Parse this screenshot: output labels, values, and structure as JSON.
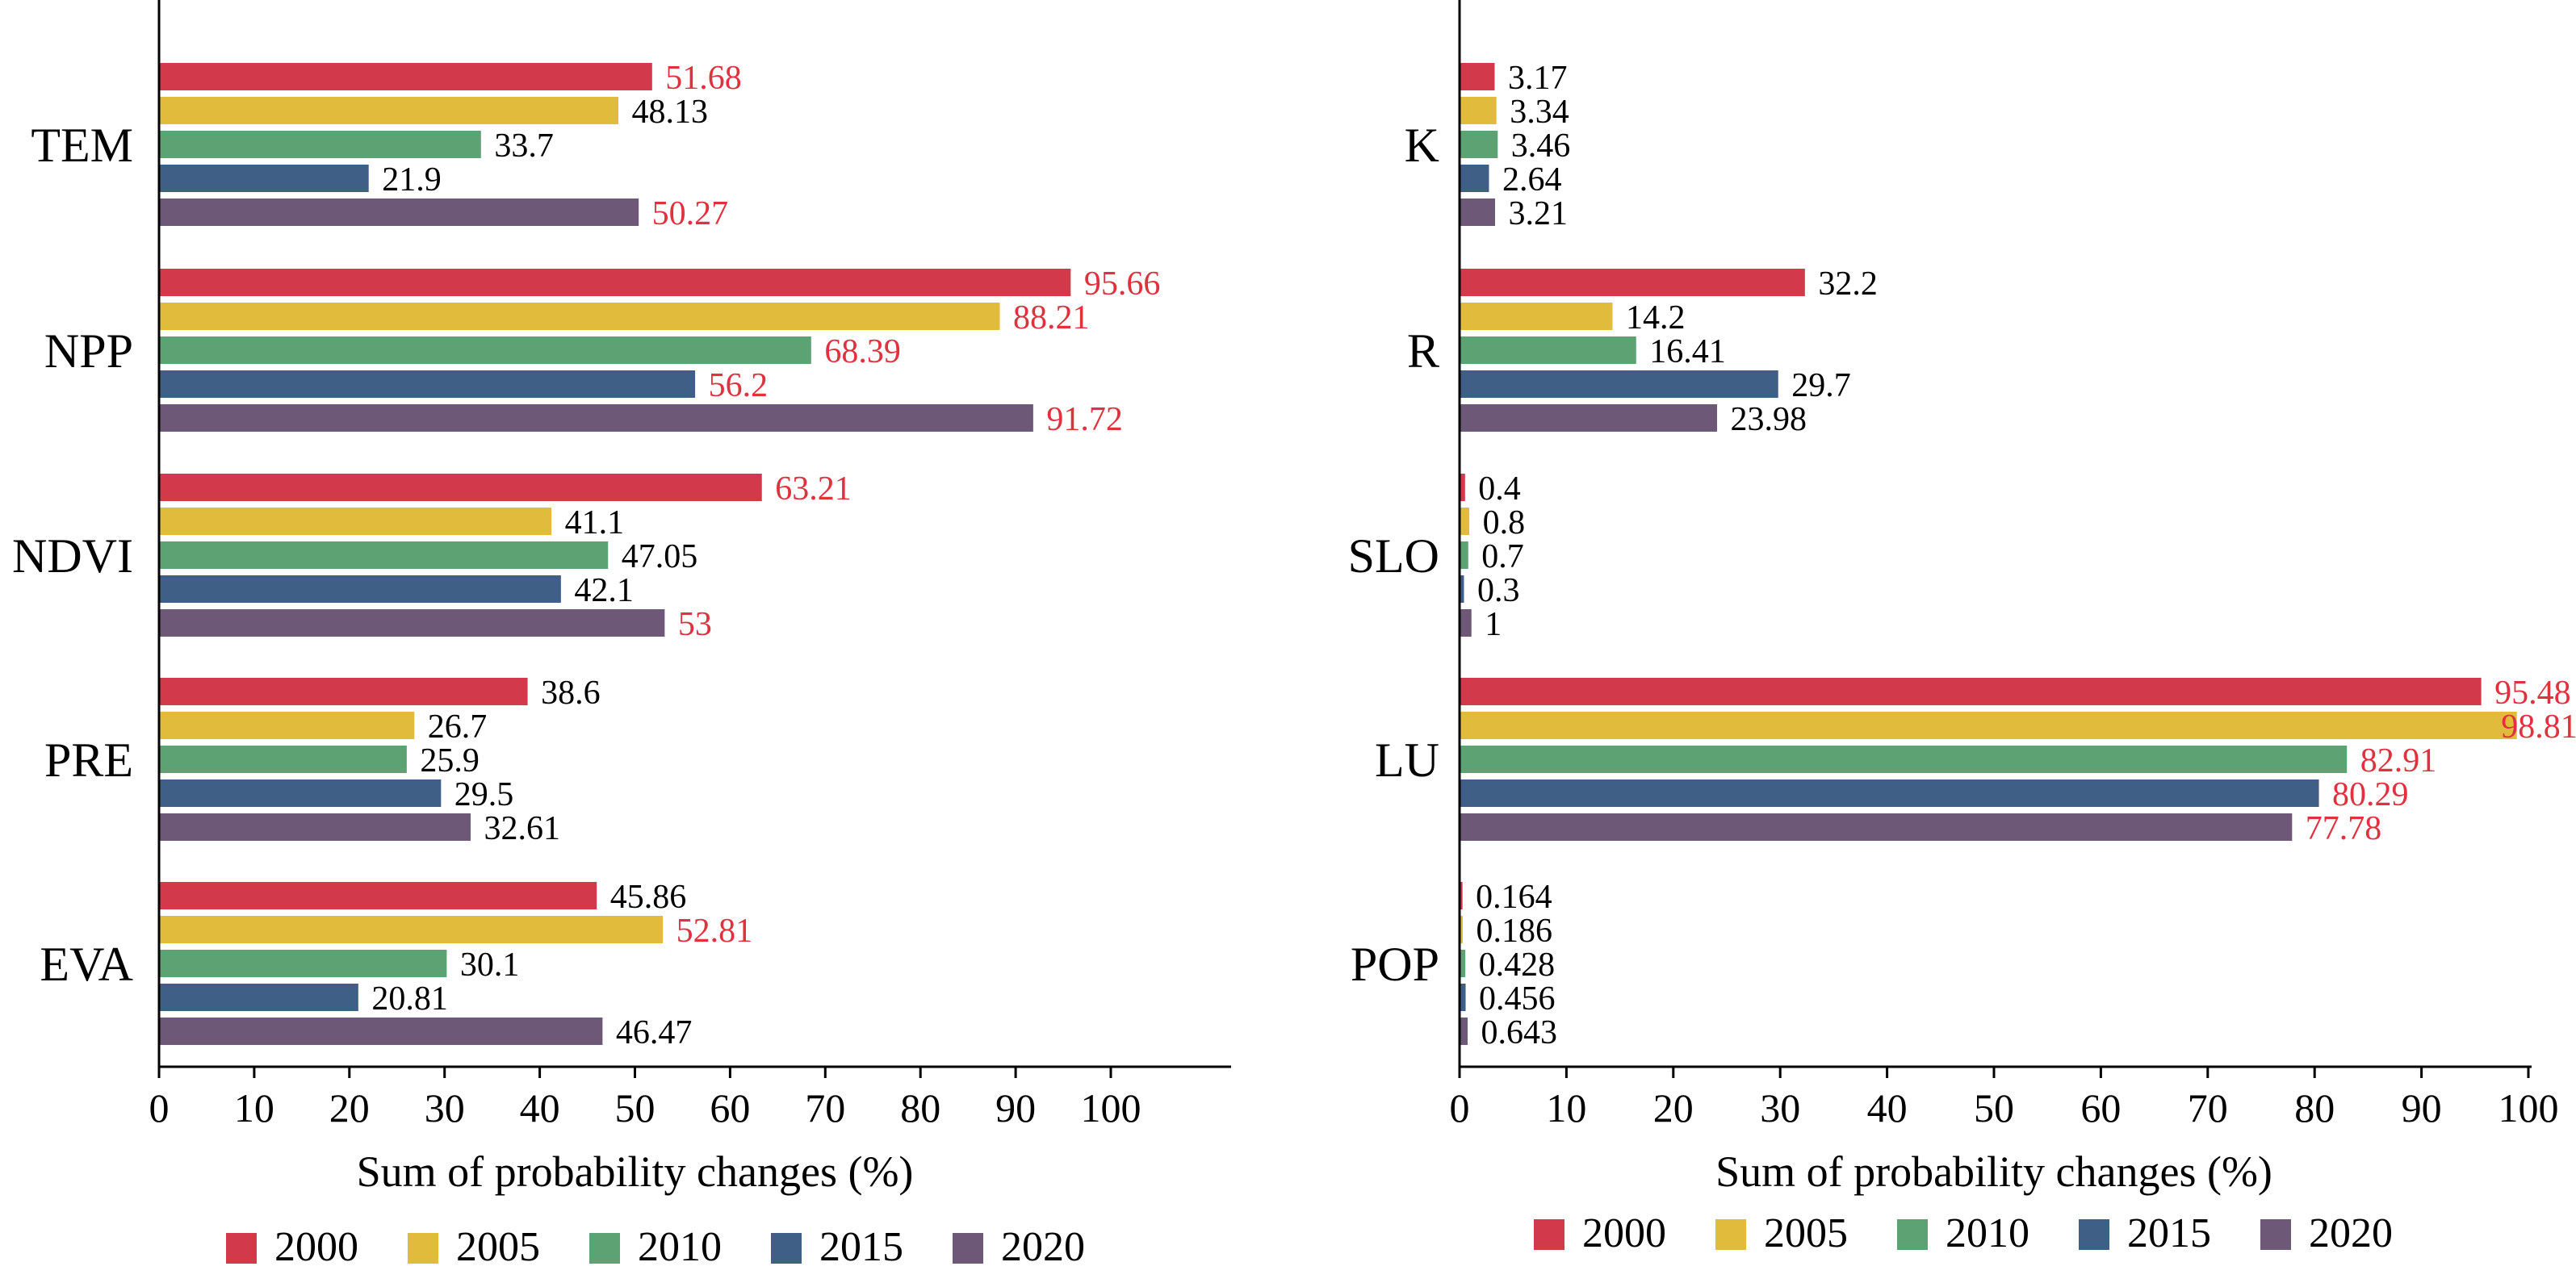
{
  "colors": {
    "2000": "#d23a4b",
    "2005": "#e1bc3c",
    "2010": "#5ca273",
    "2015": "#3f5f86",
    "2020": "#6e5878",
    "highlight_text": "#e0323e",
    "normal_text": "#000000"
  },
  "chart_data": [
    {
      "type": "bar",
      "orientation": "horizontal",
      "xlabel": "Sum of probability changes (%)",
      "xlim": [
        0,
        110
      ],
      "xticks": [
        0,
        10,
        20,
        30,
        40,
        50,
        60,
        70,
        80,
        90,
        100
      ],
      "legend_position": "bottom",
      "categories": [
        "TEM",
        "NPP",
        "NDVI",
        "PRE",
        "EVA"
      ],
      "series": [
        {
          "name": "2000",
          "values": [
            51.68,
            95.66,
            63.21,
            38.6,
            45.86
          ]
        },
        {
          "name": "2005",
          "values": [
            48.13,
            88.21,
            41.1,
            26.7,
            52.81
          ]
        },
        {
          "name": "2010",
          "values": [
            33.7,
            68.39,
            47.05,
            25.9,
            30.1
          ]
        },
        {
          "name": "2015",
          "values": [
            21.9,
            56.2,
            42.1,
            29.5,
            20.81
          ]
        },
        {
          "name": "2020",
          "values": [
            50.27,
            91.72,
            53,
            32.61,
            46.47
          ]
        }
      ],
      "value_labels": [
        [
          "51.68",
          "95.66",
          "63.21",
          "38.6",
          "45.86"
        ],
        [
          "48.13",
          "88.21",
          "41.1",
          "26.7",
          "52.81"
        ],
        [
          "33.7",
          "68.39",
          "47.05",
          "25.9",
          "30.1"
        ],
        [
          "21.9",
          "56.2",
          "42.1",
          "29.5",
          "20.81"
        ],
        [
          "50.27",
          "91.72",
          "53",
          "32.61",
          "46.47"
        ]
      ],
      "highlighted": [
        [
          true,
          true,
          true,
          false,
          false
        ],
        [
          false,
          true,
          false,
          false,
          true
        ],
        [
          false,
          true,
          false,
          false,
          false
        ],
        [
          false,
          true,
          false,
          false,
          false
        ],
        [
          true,
          true,
          true,
          false,
          false
        ]
      ]
    },
    {
      "type": "bar",
      "orientation": "horizontal",
      "xlabel": "Sum of probability changes (%)",
      "xlim": [
        0,
        100
      ],
      "xticks": [
        0,
        10,
        20,
        30,
        40,
        50,
        60,
        70,
        80,
        90,
        100
      ],
      "legend_position": "bottom",
      "categories": [
        "K",
        "R",
        "SLO",
        "LU",
        "POP"
      ],
      "series": [
        {
          "name": "2000",
          "values": [
            3.17,
            32.2,
            0.4,
            95.48,
            0.164
          ]
        },
        {
          "name": "2005",
          "values": [
            3.34,
            14.2,
            0.8,
            98.81,
            0.186
          ]
        },
        {
          "name": "2010",
          "values": [
            3.46,
            16.41,
            0.7,
            82.91,
            0.428
          ]
        },
        {
          "name": "2015",
          "values": [
            2.64,
            29.7,
            0.3,
            80.29,
            0.456
          ]
        },
        {
          "name": "2020",
          "values": [
            3.21,
            23.98,
            1,
            77.78,
            0.643
          ]
        }
      ],
      "value_labels": [
        [
          "3.17",
          "32.2",
          "0.4",
          "95.48",
          "0.164"
        ],
        [
          "3.34",
          "14.2",
          "0.8",
          "98.81",
          "0.186"
        ],
        [
          "3.46",
          "16.41",
          "0.7",
          "82.91",
          "0.428"
        ],
        [
          "2.64",
          "29.7",
          "0.3",
          "80.29",
          "0.456"
        ],
        [
          "3.21",
          "23.98",
          "1",
          "77.78",
          "0.643"
        ]
      ],
      "highlighted": [
        [
          false,
          false,
          false,
          true,
          false
        ],
        [
          false,
          false,
          false,
          true,
          false
        ],
        [
          false,
          false,
          false,
          true,
          false
        ],
        [
          false,
          false,
          false,
          true,
          false
        ],
        [
          false,
          false,
          false,
          true,
          false
        ]
      ]
    }
  ]
}
